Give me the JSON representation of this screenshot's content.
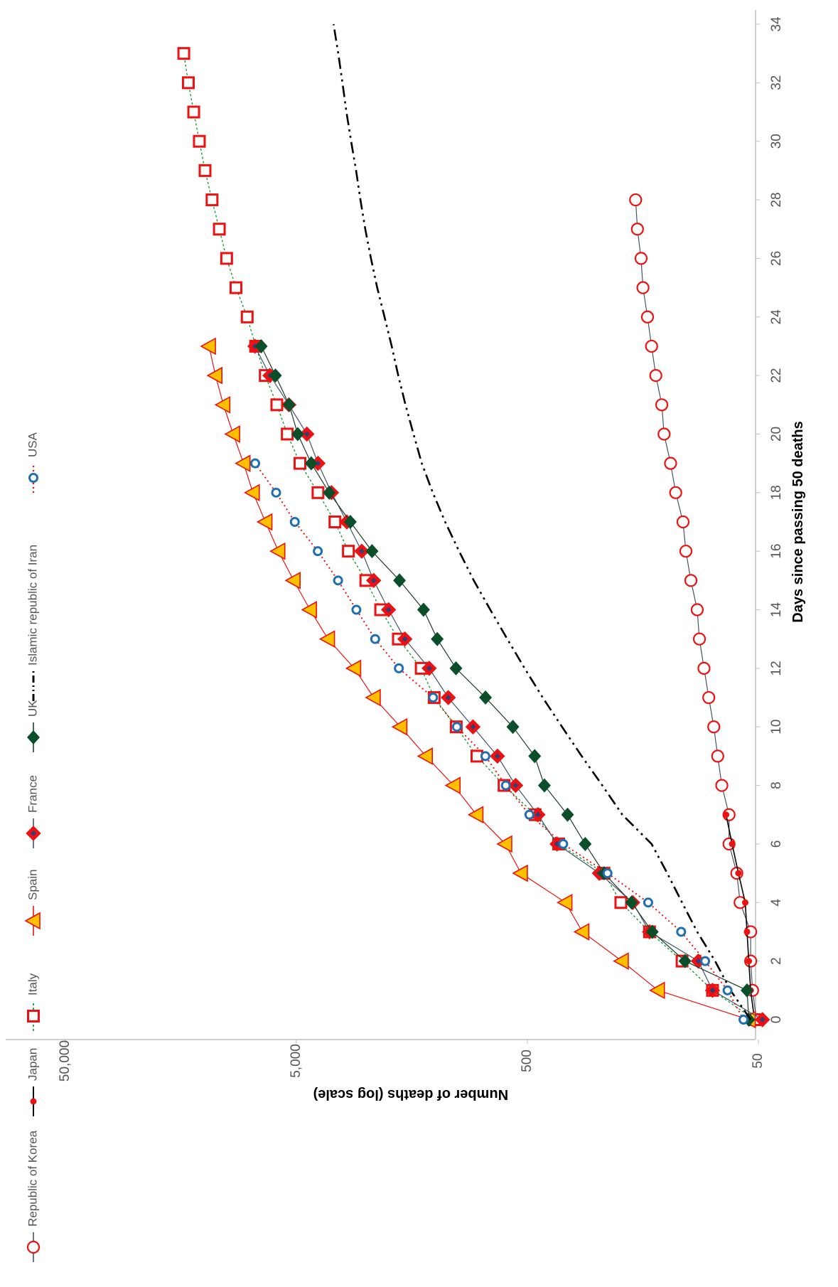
{
  "chart_data": {
    "type": "line",
    "title": "",
    "xlabel": "Days since passing 50 deaths",
    "ylabel": "Number of deaths (log scale)",
    "x_ticks": [
      0,
      2,
      4,
      6,
      8,
      10,
      12,
      14,
      16,
      18,
      20,
      22,
      24,
      26,
      28,
      30,
      32,
      34
    ],
    "y_ticks": [
      50,
      500,
      5000,
      50000
    ],
    "y_tick_labels": [
      "50",
      "500",
      "5,000",
      "50,000"
    ],
    "y_scale": "log",
    "xlim": [
      0,
      34
    ],
    "ylim": [
      50,
      50000
    ],
    "orientation": "rotated 90° clockwise",
    "legend_position": "top",
    "grid": false,
    "series": [
      {
        "name": "Republic of Korea",
        "color": "#ee1111",
        "marker": "open-circle",
        "line": "solid",
        "x": [
          0,
          1,
          2,
          3,
          4,
          5,
          6,
          7,
          8,
          9,
          10,
          11,
          12,
          13,
          14,
          15,
          16,
          17,
          18,
          19,
          20,
          21,
          22,
          23,
          24,
          25,
          26,
          27,
          28
        ],
        "y": [
          51,
          53,
          54,
          54,
          60,
          62,
          67,
          67,
          72,
          75,
          78,
          82,
          86,
          90,
          92,
          98,
          103,
          106,
          114,
          120,
          128,
          131,
          139,
          145,
          151,
          158,
          161,
          167,
          170
        ]
      },
      {
        "name": "Japan",
        "color": "#ee1111",
        "marker": "dot",
        "line": "solid",
        "x": [
          0,
          1,
          2,
          3,
          4,
          5,
          6,
          7
        ],
        "y": [
          52,
          54,
          55,
          56,
          57,
          61,
          65,
          69
        ]
      },
      {
        "name": "Italy",
        "color": "#ee1111",
        "marker": "open-square",
        "line": "dotted-green",
        "x": [
          0,
          1,
          2,
          3,
          4,
          5,
          6,
          7,
          8,
          9,
          10,
          11,
          12,
          13,
          14,
          15,
          16,
          17,
          18,
          19,
          20,
          21,
          22,
          23,
          24,
          25,
          26,
          27,
          28,
          29,
          30,
          31,
          32,
          33
        ],
        "y": [
          52,
          79,
          107,
          148,
          197,
          233,
          366,
          463,
          631,
          827,
          1016,
          1266,
          1441,
          1809,
          2158,
          2503,
          2978,
          3405,
          4032,
          4825,
          5476,
          6077,
          6820,
          7503,
          8165,
          9134,
          10023,
          10779,
          11591,
          12428,
          13155,
          13915,
          14681,
          15362
        ]
      },
      {
        "name": "Spain",
        "color": "#ee1111",
        "marker": "triangle",
        "line": "solid",
        "x": [
          0,
          1,
          2,
          3,
          4,
          5,
          6,
          7,
          8,
          9,
          10,
          11,
          12,
          13,
          14,
          15,
          16,
          17,
          18,
          19,
          20,
          21,
          22,
          23
        ],
        "y": [
          55,
          136,
          195,
          289,
          342,
          533,
          623,
          830,
          1043,
          1375,
          1772,
          2311,
          2808,
          3647,
          4365,
          5138,
          5982,
          6803,
          7716,
          8464,
          9387,
          10348,
          11198,
          11947
        ]
      },
      {
        "name": "France",
        "color": "#ee1111",
        "marker": "diamond",
        "line": "solid-navy",
        "x": [
          0,
          1,
          2,
          3,
          4,
          5,
          6,
          7,
          8,
          9,
          10,
          11,
          12,
          13,
          14,
          15,
          16,
          17,
          18,
          19,
          20,
          21,
          22,
          23
        ],
        "y": [
          48,
          79,
          91,
          148,
          175,
          244,
          372,
          450,
          562,
          674,
          860,
          1100,
          1331,
          1696,
          1995,
          2314,
          2606,
          3024,
          3523,
          4032,
          4503,
          5387,
          6507,
          7560
        ]
      },
      {
        "name": "UK",
        "color": "#0b4f2a",
        "marker": "filled-diamond",
        "line": "solid",
        "x": [
          0,
          1,
          2,
          3,
          4,
          5,
          6,
          7,
          8,
          9,
          10,
          11,
          12,
          13,
          14,
          15,
          16,
          17,
          18,
          19,
          20,
          21,
          22,
          23
        ],
        "y": [
          55,
          56,
          104,
          144,
          177,
          233,
          281,
          335,
          422,
          465,
          578,
          759,
          1019,
          1228,
          1408,
          1789,
          2352,
          2921,
          3605,
          4313,
          4934,
          5373,
          6159,
          7097
        ]
      },
      {
        "name": "Islamic republic of Iran",
        "color": "#000000",
        "marker": "none",
        "line": "dash-dot-dot",
        "x": [
          0,
          1,
          2,
          3,
          4,
          5,
          6,
          7,
          8,
          9,
          10,
          11,
          12,
          13,
          14,
          15,
          16,
          17,
          18,
          19,
          20,
          21,
          22,
          23,
          24,
          25,
          26,
          27,
          28,
          29,
          30,
          31,
          32,
          33,
          34
        ],
        "y": [
          54,
          66,
          77,
          92,
          107,
          124,
          145,
          194,
          237,
          291,
          354,
          429,
          514,
          611,
          724,
          853,
          988,
          1135,
          1284,
          1433,
          1556,
          1685,
          1812,
          1934,
          2077,
          2234,
          2378,
          2517,
          2640,
          2757,
          2898,
          3036,
          3160,
          3294,
          3452
        ]
      },
      {
        "name": "USA",
        "color": "#1f6fb5",
        "marker": "open-circle-blue",
        "line": "dotted-red",
        "x": [
          0,
          1,
          2,
          3,
          4,
          5,
          6,
          7,
          8,
          9,
          10,
          11,
          12,
          13,
          14,
          15,
          16,
          17,
          18,
          19
        ],
        "y": [
          58,
          68,
          85,
          108,
          150,
          225,
          350,
          490,
          620,
          760,
          1010,
          1280,
          1800,
          2280,
          2750,
          3300,
          4040,
          5080,
          6120,
          7540
        ]
      }
    ]
  }
}
